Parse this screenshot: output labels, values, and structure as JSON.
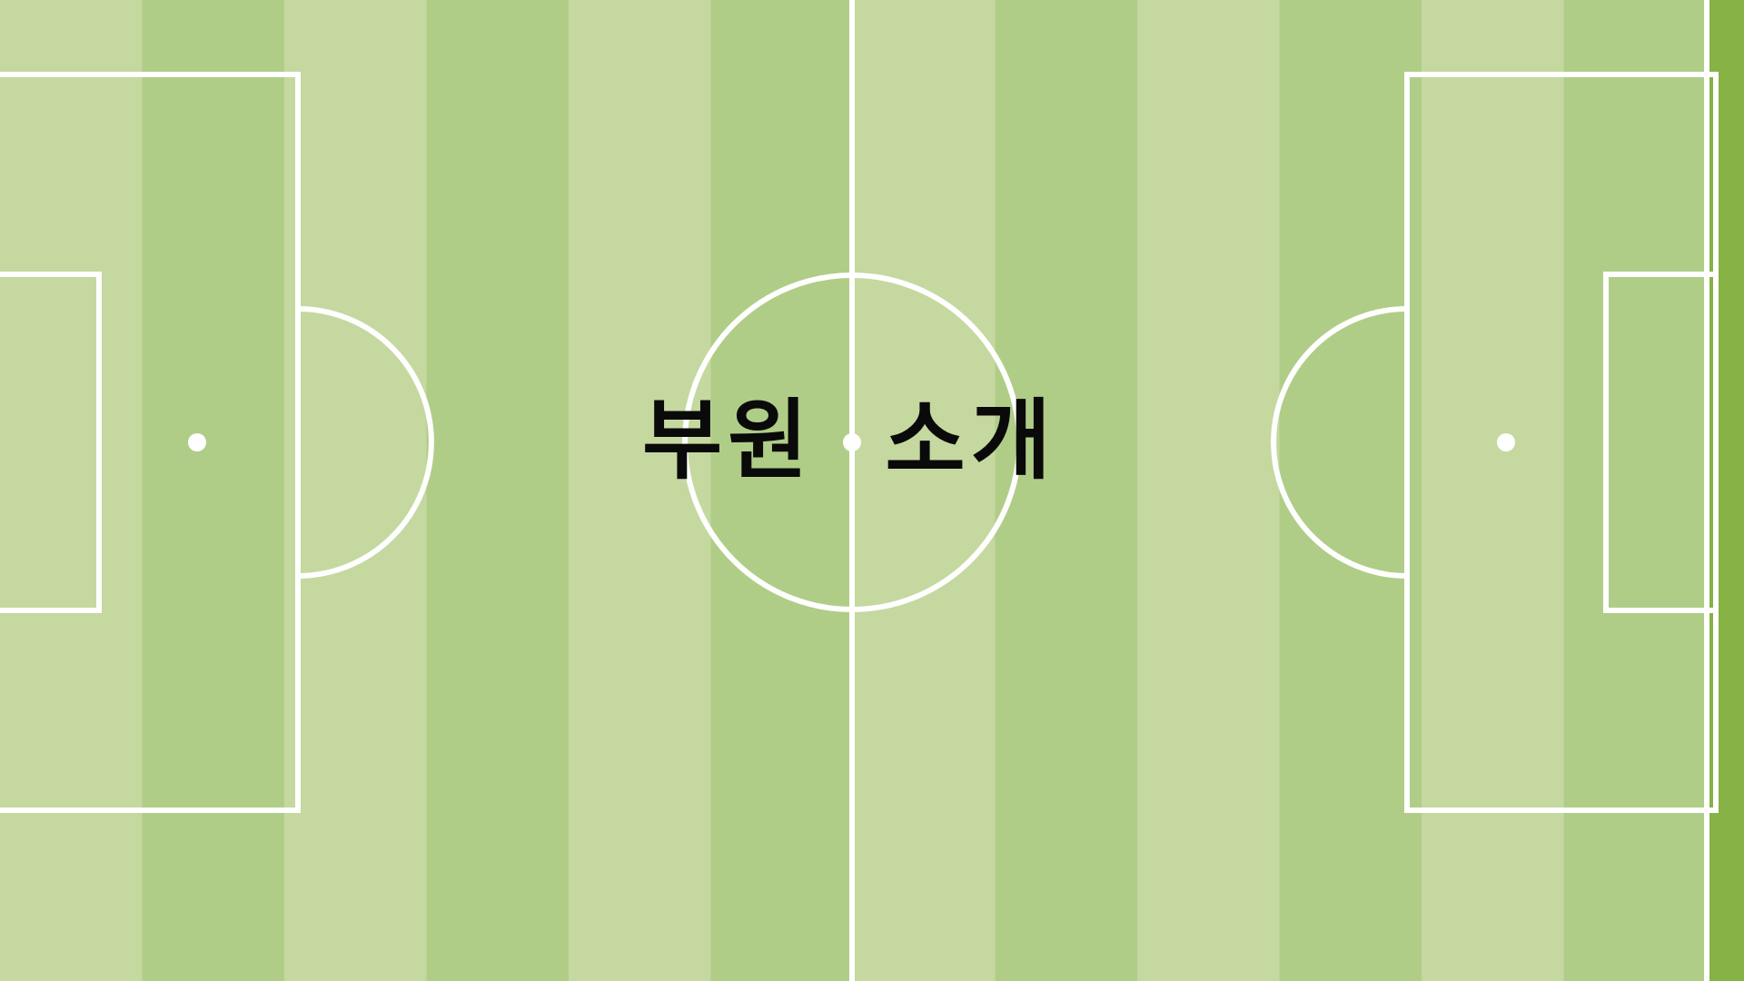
{
  "slide": {
    "title": "부원  소개"
  },
  "pitch": {
    "light_stripe_color": "#c5d8a0",
    "dark_stripe_color": "#b0cd87",
    "line_color": "#ffffff",
    "side_border_color": "#86b246"
  }
}
